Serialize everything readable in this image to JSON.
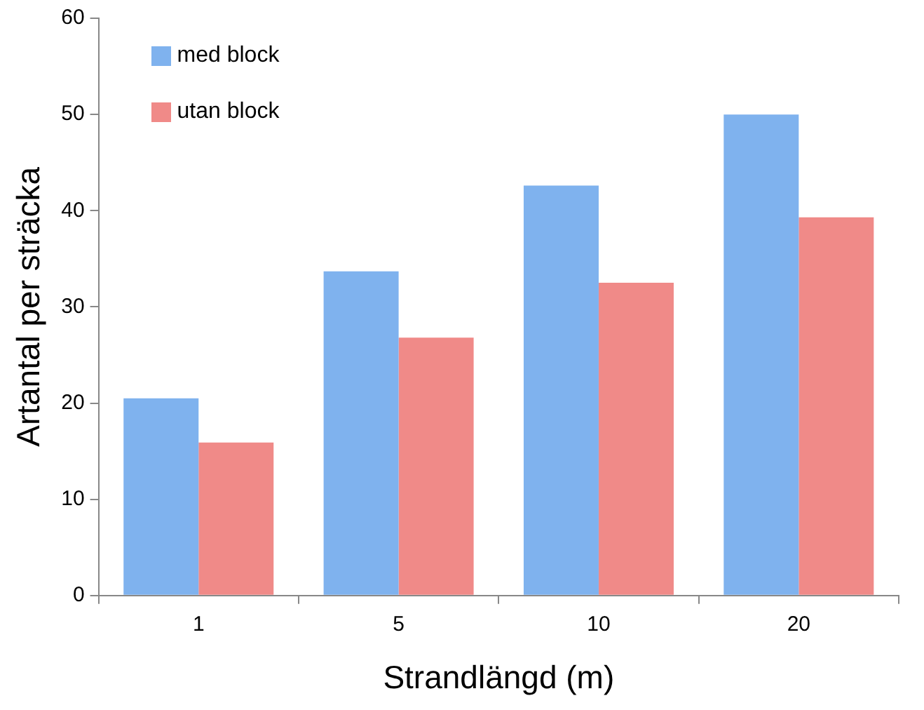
{
  "chart_data": {
    "type": "bar",
    "xlabel": "Strandlängd (m)",
    "ylabel": "Artantal per sträcka",
    "categories": [
      "1",
      "5",
      "10",
      "20"
    ],
    "series": [
      {
        "name": "med block",
        "color": "#7fb2ee",
        "values": [
          20.5,
          33.7,
          42.6,
          50
        ]
      },
      {
        "name": "utan block",
        "color": "#f08a88",
        "values": [
          15.9,
          26.8,
          32.5,
          39.3
        ]
      }
    ],
    "ylim": [
      0,
      60
    ],
    "yticks": [
      0,
      10,
      20,
      30,
      40,
      50,
      60
    ],
    "grid": false,
    "legend": "top left"
  }
}
